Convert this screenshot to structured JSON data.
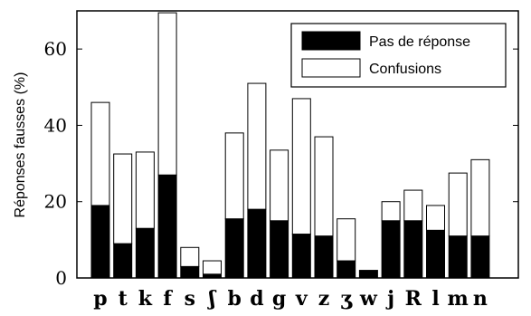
{
  "chart_data": {
    "type": "bar",
    "stacked": true,
    "categories": [
      "p",
      "t",
      "k",
      "f",
      "s",
      "ʃ",
      "b",
      "d",
      "g",
      "v",
      "z",
      "ʒ",
      "w",
      "j",
      "R",
      "l",
      "m",
      "n"
    ],
    "series": [
      {
        "name": "Pas de réponse",
        "color": "#000000",
        "values": [
          19,
          9,
          13,
          27,
          3,
          1,
          15.5,
          18,
          15,
          11.5,
          11,
          4.5,
          2,
          15,
          15,
          12.5,
          11,
          11
        ]
      },
      {
        "name": "Confusions",
        "color": "#ffffff",
        "values": [
          27,
          23.5,
          20,
          42.5,
          5,
          3.5,
          22.5,
          33,
          18.5,
          35.5,
          26,
          11,
          0,
          5,
          8,
          6.5,
          16.5,
          20
        ]
      }
    ],
    "ylabel": "Réponses fausses (%)",
    "xlabel": "",
    "ylim": [
      0,
      70
    ],
    "yticks": [
      0,
      20,
      40,
      60
    ],
    "legend_position": "top-right",
    "grid": false
  }
}
